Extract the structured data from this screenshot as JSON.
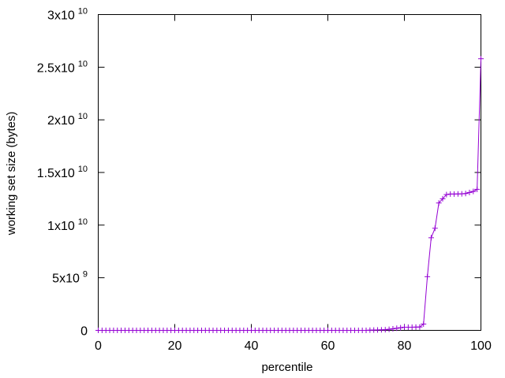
{
  "chart_data": {
    "type": "line",
    "title": "",
    "xlabel": "percentile",
    "ylabel": "working set size (bytes)",
    "xlim": [
      0,
      100
    ],
    "ylim": [
      0,
      30000000000
    ],
    "grid": false,
    "legend": "none",
    "line_color": "#9400d3",
    "marker": "plus",
    "x_ticks": [
      {
        "value": 0,
        "label": "0"
      },
      {
        "value": 20,
        "label": "20"
      },
      {
        "value": 40,
        "label": "40"
      },
      {
        "value": 60,
        "label": "60"
      },
      {
        "value": 80,
        "label": "80"
      },
      {
        "value": 100,
        "label": "100"
      }
    ],
    "y_ticks": [
      {
        "value": 0,
        "mantissa": "0",
        "exponent": ""
      },
      {
        "value": 5000000000,
        "mantissa": "5x10",
        "exponent": "9"
      },
      {
        "value": 10000000000,
        "mantissa": "1x10",
        "exponent": "10"
      },
      {
        "value": 15000000000,
        "mantissa": "1.5x10",
        "exponent": "10"
      },
      {
        "value": 20000000000,
        "mantissa": "2x10",
        "exponent": "10"
      },
      {
        "value": 25000000000,
        "mantissa": "2.5x10",
        "exponent": "10"
      },
      {
        "value": 30000000000,
        "mantissa": "3x10",
        "exponent": "10"
      }
    ],
    "series": [
      {
        "x": [
          0,
          1,
          2,
          3,
          4,
          5,
          6,
          7,
          8,
          9,
          10,
          11,
          12,
          13,
          14,
          15,
          16,
          17,
          18,
          19,
          20,
          21,
          22,
          23,
          24,
          25,
          26,
          27,
          28,
          29,
          30,
          31,
          32,
          33,
          34,
          35,
          36,
          37,
          38,
          39,
          40,
          41,
          42,
          43,
          44,
          45,
          46,
          47,
          48,
          49,
          50,
          51,
          52,
          53,
          54,
          55,
          56,
          57,
          58,
          59,
          60,
          61,
          62,
          63,
          64,
          65,
          66,
          67,
          68,
          69,
          70,
          71,
          72,
          73,
          74,
          75,
          76,
          77,
          78,
          79,
          80,
          81,
          82,
          83,
          84,
          85,
          86,
          87,
          88,
          89,
          90,
          91,
          92,
          93,
          94,
          95,
          96,
          97,
          98,
          99,
          100
        ],
        "values": [
          0,
          0,
          0,
          0,
          0,
          0,
          0,
          0,
          0,
          0,
          0,
          0,
          0,
          0,
          0,
          0,
          0,
          0,
          0,
          0,
          0,
          0,
          0,
          0,
          0,
          0,
          0,
          0,
          0,
          0,
          0,
          0,
          0,
          0,
          0,
          0,
          0,
          0,
          0,
          0,
          0,
          0,
          0,
          0,
          0,
          0,
          0,
          0,
          0,
          0,
          0,
          0,
          0,
          0,
          0,
          0,
          0,
          0,
          0,
          0,
          0,
          0,
          0,
          0,
          0,
          0,
          0,
          0,
          0,
          0,
          0,
          20000000,
          30000000,
          40000000,
          50000000,
          60000000,
          100000000,
          150000000,
          200000000,
          250000000,
          300000000,
          300000000,
          300000000,
          310000000,
          320000000,
          600000000,
          5100000000,
          8800000000,
          9700000000,
          12100000000,
          12500000000,
          12900000000,
          12950000000,
          12950000000,
          12960000000,
          12970000000,
          13000000000,
          13100000000,
          13200000000,
          13400000000,
          25800000000
        ]
      }
    ]
  }
}
